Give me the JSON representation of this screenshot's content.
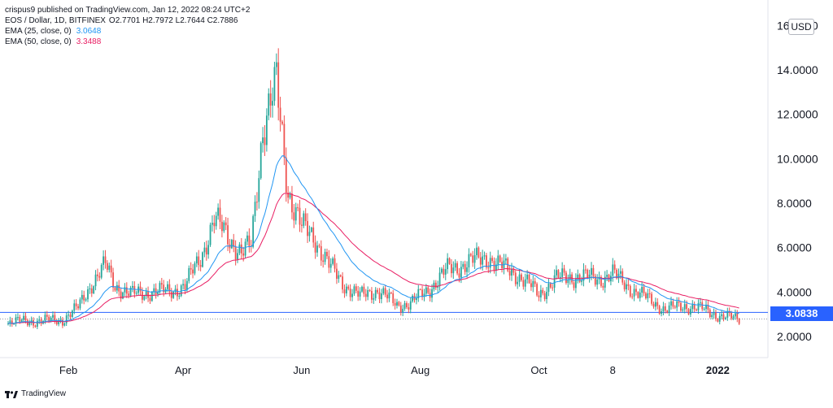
{
  "header": {
    "publisher": "crispus9 published on TradingView.com, Jan 12, 2022 08:24 UTC+2",
    "symbol": "EOS / Dollar, 1D, BITFINEX",
    "ohlc": "O2.7701  H2.7972  L2.7644  C2.7886",
    "ema25_label": "EMA (25, close, 0)",
    "ema25_value": "3.0648",
    "ema50_label": "EMA (50, close, 0)",
    "ema50_value": "3.3488"
  },
  "currency_badge": "USD",
  "price_badge": "3.0838",
  "footer": {
    "brand": "TradingView"
  },
  "colors": {
    "up": "#26a69a",
    "down": "#ef5350",
    "ema25": "#2196f3",
    "ema50": "#e91e63",
    "hline": "#2962ff"
  },
  "chart_data": {
    "type": "candlestick",
    "ylim": [
      1.0,
      16.0
    ],
    "yticks": [
      "2.0000",
      "4.0000",
      "6.0000",
      "8.0000",
      "10.0000",
      "12.0000",
      "14.0000",
      "16.0000"
    ],
    "ytick_values": [
      2,
      4,
      6,
      8,
      10,
      12,
      14,
      16
    ],
    "xticks": [
      "Feb",
      "Apr",
      "Jun",
      "Aug",
      "Oct",
      "8",
      "2022"
    ],
    "xtick_dates": [
      "2021-02-01",
      "2021-04-01",
      "2021-06-01",
      "2021-08-01",
      "2021-10-01",
      "2021-11-08",
      "2022-01-01"
    ],
    "x_range": [
      "2021-01-01",
      "2022-01-31"
    ],
    "horizontal_line": 3.0838,
    "last_close": 2.7886,
    "close_path": [
      [
        "2021-01-01",
        2.65
      ],
      [
        "2021-01-15",
        2.7
      ],
      [
        "2021-01-29",
        2.75
      ],
      [
        "2021-02-06",
        3.3
      ],
      [
        "2021-02-13",
        4.4
      ],
      [
        "2021-02-20",
        5.2
      ],
      [
        "2021-02-25",
        4.3
      ],
      [
        "2021-03-05",
        3.9
      ],
      [
        "2021-03-15",
        4.0
      ],
      [
        "2021-03-25",
        4.05
      ],
      [
        "2021-04-02",
        4.25
      ],
      [
        "2021-04-10",
        5.6
      ],
      [
        "2021-04-17",
        7.2
      ],
      [
        "2021-04-23",
        6.7
      ],
      [
        "2021-05-01",
        5.7
      ],
      [
        "2021-05-06",
        6.1
      ],
      [
        "2021-05-12",
        11.5
      ],
      [
        "2021-05-19",
        13.2
      ],
      [
        "2021-05-25",
        8.6
      ],
      [
        "2021-06-01",
        6.9
      ],
      [
        "2021-06-08",
        6.4
      ],
      [
        "2021-06-15",
        5.2
      ],
      [
        "2021-06-22",
        4.4
      ],
      [
        "2021-07-01",
        3.8
      ],
      [
        "2021-07-10",
        4.1
      ],
      [
        "2021-07-20",
        3.4
      ],
      [
        "2021-07-27",
        3.5
      ],
      [
        "2021-08-05",
        4.1
      ],
      [
        "2021-08-15",
        5.0
      ],
      [
        "2021-08-25",
        5.3
      ],
      [
        "2021-09-05",
        5.6
      ],
      [
        "2021-09-10",
        5.2
      ],
      [
        "2021-09-20",
        4.8
      ],
      [
        "2021-10-01",
        3.9
      ],
      [
        "2021-10-10",
        4.6
      ],
      [
        "2021-10-20",
        4.7
      ],
      [
        "2021-11-01",
        4.6
      ],
      [
        "2021-11-08",
        4.8
      ],
      [
        "2021-11-20",
        4.0
      ],
      [
        "2021-11-30",
        3.5
      ],
      [
        "2021-12-05",
        3.2
      ],
      [
        "2021-12-15",
        3.4
      ],
      [
        "2021-12-25",
        3.2
      ],
      [
        "2022-01-03",
        2.9
      ],
      [
        "2022-01-12",
        2.79
      ]
    ],
    "series": [
      {
        "name": "EMA (25, close, 0)",
        "role": "ema25"
      },
      {
        "name": "EMA (50, close, 0)",
        "role": "ema50"
      }
    ]
  }
}
